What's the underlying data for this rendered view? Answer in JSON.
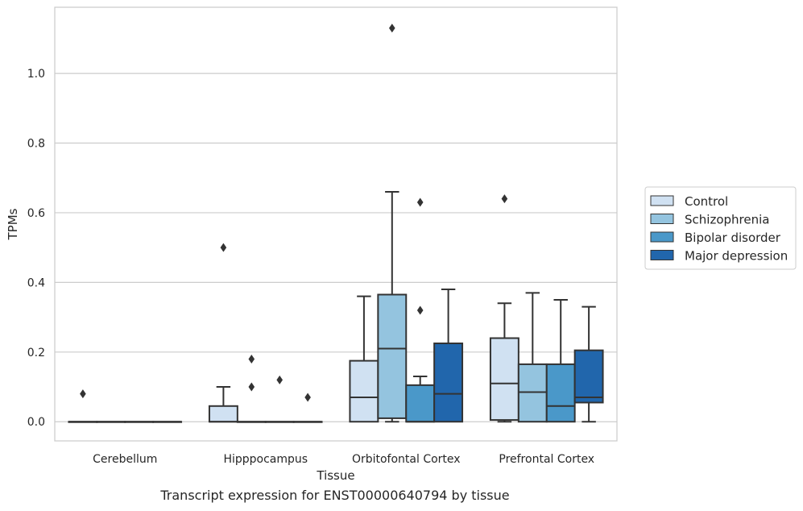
{
  "caption": "Transcript expression for ENST00000640794 by tissue",
  "chart_data": {
    "type": "boxplot",
    "xlabel": "Tissue",
    "ylabel": "TPMs",
    "ylim": [
      -0.055,
      1.19
    ],
    "yticks": [
      0.0,
      0.2,
      0.4,
      0.6,
      0.8,
      1.0
    ],
    "ytick_labels": [
      "0.0",
      "0.2",
      "0.4",
      "0.6",
      "0.8",
      "1.0"
    ],
    "grid": true,
    "legend_position": "right",
    "categories": [
      "Cerebellum",
      "Hipppocampus",
      "Orbitofontal Cortex",
      "Prefrontal Cortex"
    ],
    "series": [
      {
        "name": "Control",
        "color": "#d0e1f2",
        "boxes": [
          {
            "whislo": 0.0,
            "q1": 0.0,
            "med": 0.0,
            "q3": 0.0,
            "whishi": 0.0,
            "fliers": [
              0.08
            ]
          },
          {
            "whislo": 0.0,
            "q1": 0.0,
            "med": 0.0,
            "q3": 0.045,
            "whishi": 0.1,
            "fliers": [
              0.5
            ]
          },
          {
            "whislo": 0.0,
            "q1": 0.0,
            "med": 0.07,
            "q3": 0.175,
            "whishi": 0.36,
            "fliers": []
          },
          {
            "whislo": 0.0,
            "q1": 0.005,
            "med": 0.11,
            "q3": 0.24,
            "whishi": 0.34,
            "fliers": [
              0.64
            ]
          }
        ]
      },
      {
        "name": "Schizophrenia",
        "color": "#94c4df",
        "boxes": [
          {
            "whislo": 0.0,
            "q1": 0.0,
            "med": 0.0,
            "q3": 0.0,
            "whishi": 0.0,
            "fliers": []
          },
          {
            "whislo": 0.0,
            "q1": 0.0,
            "med": 0.0,
            "q3": 0.0,
            "whishi": 0.0,
            "fliers": [
              0.18,
              0.1
            ]
          },
          {
            "whislo": 0.0,
            "q1": 0.01,
            "med": 0.21,
            "q3": 0.365,
            "whishi": 0.66,
            "fliers": [
              1.13
            ]
          },
          {
            "whislo": 0.0,
            "q1": 0.0,
            "med": 0.085,
            "q3": 0.165,
            "whishi": 0.37,
            "fliers": []
          }
        ]
      },
      {
        "name": "Bipolar disorder",
        "color": "#4a98c9",
        "boxes": [
          {
            "whislo": 0.0,
            "q1": 0.0,
            "med": 0.0,
            "q3": 0.0,
            "whishi": 0.0,
            "fliers": []
          },
          {
            "whislo": 0.0,
            "q1": 0.0,
            "med": 0.0,
            "q3": 0.0,
            "whishi": 0.0,
            "fliers": [
              0.12
            ]
          },
          {
            "whislo": 0.0,
            "q1": 0.0,
            "med": 0.0,
            "q3": 0.105,
            "whishi": 0.13,
            "fliers": [
              0.63,
              0.32
            ]
          },
          {
            "whislo": 0.0,
            "q1": 0.0,
            "med": 0.045,
            "q3": 0.165,
            "whishi": 0.35,
            "fliers": []
          }
        ]
      },
      {
        "name": "Major depression",
        "color": "#2166ac",
        "boxes": [
          {
            "whislo": 0.0,
            "q1": 0.0,
            "med": 0.0,
            "q3": 0.0,
            "whishi": 0.0,
            "fliers": []
          },
          {
            "whislo": 0.0,
            "q1": 0.0,
            "med": 0.0,
            "q3": 0.0,
            "whishi": 0.0,
            "fliers": [
              0.07
            ]
          },
          {
            "whislo": 0.0,
            "q1": 0.0,
            "med": 0.08,
            "q3": 0.225,
            "whishi": 0.38,
            "fliers": []
          },
          {
            "whislo": 0.0,
            "q1": 0.055,
            "med": 0.07,
            "q3": 0.205,
            "whishi": 0.33,
            "fliers": []
          }
        ]
      }
    ]
  }
}
